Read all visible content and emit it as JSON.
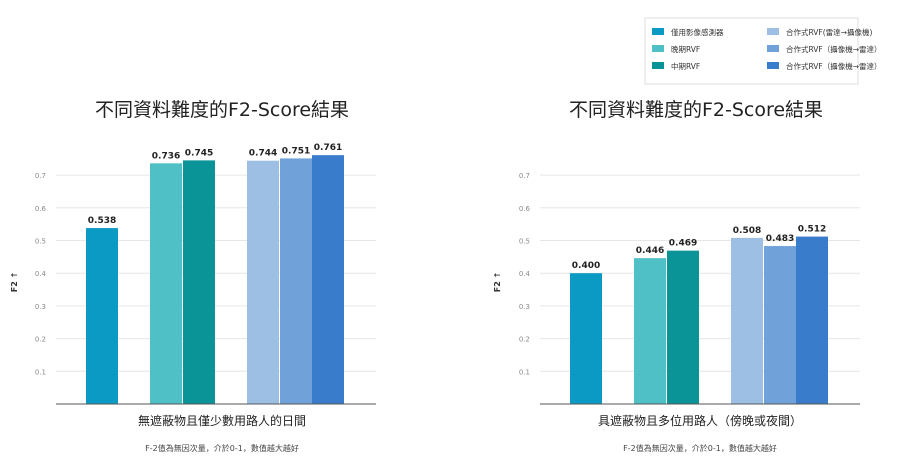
{
  "legend": {
    "position": "top-right",
    "items": [
      {
        "name": "僅用影像感測器",
        "color": "#0a9ac4"
      },
      {
        "name": "晚期RVF",
        "color": "#4fc1c6"
      },
      {
        "name": "中期RVF",
        "color": "#0b9497"
      },
      {
        "name": "合作式RVF(雷達→攝像機)",
        "color": "#9dbfe3"
      },
      {
        "name": "合作式RVF（攝像機→雷達）",
        "color": "#70a1d9"
      },
      {
        "name": "合作式RVF（攝像機→雷達）",
        "color": "#3a7ccc"
      }
    ]
  },
  "chart_data": [
    {
      "type": "bar",
      "title": "不同資料難度的F2-Score結果",
      "ylabel": "F2 ↑",
      "xlabel": "無遮蔽物且僅少數用路人的日間",
      "note": "F-2值為無因次量，介於0-1，數值越大越好",
      "ylim": [
        0,
        0.8
      ],
      "yticks": [
        0.1,
        0.2,
        0.3,
        0.4,
        0.5,
        0.6,
        0.7
      ],
      "ytick_labels": [
        "0.1",
        "0.2",
        "0.3",
        "0.4",
        "0.5",
        "0.6",
        "0.7"
      ],
      "grid": true,
      "series": [
        {
          "name": "僅用影像感測器",
          "value": 0.538,
          "label": "0.538"
        },
        {
          "name": "晚期RVF",
          "value": 0.736,
          "label": "0.736"
        },
        {
          "name": "中期RVF",
          "value": 0.745,
          "label": "0.745"
        },
        {
          "name": "合作式RVF(雷達→攝像機)",
          "value": 0.744,
          "label": "0.744"
        },
        {
          "name": "合作式RVF（攝像機→雷達）",
          "value": 0.751,
          "label": "0.751"
        },
        {
          "name": "合作式RVF（攝像機→雷達）",
          "value": 0.761,
          "label": "0.761"
        }
      ]
    },
    {
      "type": "bar",
      "title": "不同資料難度的F2-Score結果",
      "ylabel": "F2 ↑",
      "xlabel": "具遮蔽物且多位用路人（傍晚或夜間）",
      "note": "F-2值為無因次量，介於0-1，數值越大越好",
      "ylim": [
        0,
        0.8
      ],
      "yticks": [
        0.1,
        0.2,
        0.3,
        0.4,
        0.5,
        0.6,
        0.7
      ],
      "ytick_labels": [
        "0.1",
        "0.2",
        "0.3",
        "0.4",
        "0.5",
        "0.6",
        "0.7"
      ],
      "grid": true,
      "series": [
        {
          "name": "僅用影像感測器",
          "value": 0.4,
          "label": "0.400"
        },
        {
          "name": "晚期RVF",
          "value": 0.446,
          "label": "0.446"
        },
        {
          "name": "中期RVF",
          "value": 0.469,
          "label": "0.469"
        },
        {
          "name": "合作式RVF(雷達→攝像機)",
          "value": 0.508,
          "label": "0.508"
        },
        {
          "name": "合作式RVF（攝像機→雷達）",
          "value": 0.483,
          "label": "0.483"
        },
        {
          "name": "合作式RVF（攝像機→雷達）",
          "value": 0.512,
          "label": "0.512"
        }
      ]
    }
  ]
}
